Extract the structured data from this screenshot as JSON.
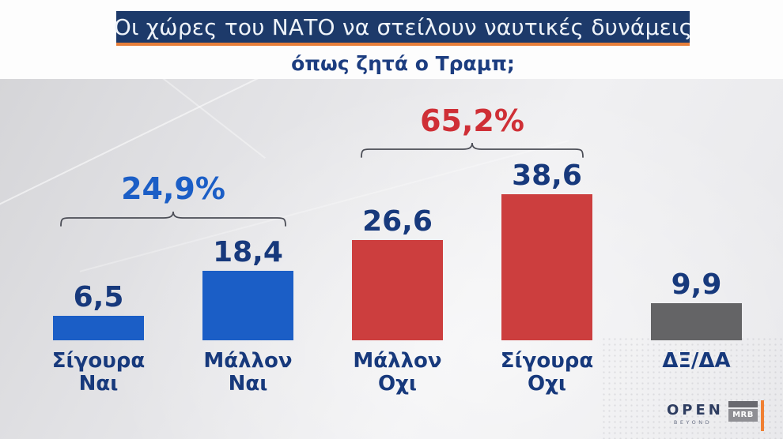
{
  "header": {
    "title": "Οι χώρες του ΝΑΤΟ να στείλουν ναυτικές δυνάμεις",
    "subtitle": "όπως ζητά ο Τραμπ;"
  },
  "chart_data": {
    "type": "bar",
    "title": "Οι χώρες του ΝΑΤΟ να στείλουν ναυτικές δυνάμεις όπως ζητά ο Τραμπ;",
    "categories": [
      "Σίγουρα Ναι",
      "Μάλλον Ναι",
      "Μάλλον Οχι",
      "Σίγουρα Οχι",
      "ΔΞ/ΔΑ"
    ],
    "category_lines": [
      [
        "Σίγουρα",
        "Ναι"
      ],
      [
        "Μάλλον",
        "Ναι"
      ],
      [
        "Μάλλον",
        "Οχι"
      ],
      [
        "Σίγουρα",
        "Οχι"
      ],
      [
        "ΔΞ/ΔΑ"
      ]
    ],
    "values": [
      6.5,
      18.4,
      26.6,
      38.6,
      9.9
    ],
    "value_labels": [
      "6,5",
      "18,4",
      "26,6",
      "38,6",
      "9,9"
    ],
    "unit": "%",
    "bar_colors": [
      "#1b5ec6",
      "#1b5ec6",
      "#cc3e3e",
      "#cc3e3e",
      "#646466"
    ],
    "ylim": [
      0,
      42
    ],
    "grid": false,
    "legend": false,
    "axes_hidden": true,
    "groups": [
      {
        "label": "24,9%",
        "color": "#1b5ec6",
        "span": [
          "Σίγουρα Ναι",
          "Μάλλον Ναι"
        ]
      },
      {
        "label": "65,2%",
        "color": "#cf2f36",
        "span": [
          "Μάλλον Οχι",
          "Σίγουρα Οχι"
        ]
      }
    ]
  },
  "footer": {
    "open_label": "OPEN",
    "open_tagline": "BEYOND",
    "mrb_label": "MRB"
  },
  "colors": {
    "header_bg": "#1d3a6a",
    "accent_orange": "#e77f3a",
    "label_navy": "#17397c",
    "bar_blue": "#1b5ec6",
    "bar_red": "#cc3e3e",
    "bar_gray": "#646466",
    "bracket": "#4b4d56",
    "background": "#e4e4e7"
  }
}
